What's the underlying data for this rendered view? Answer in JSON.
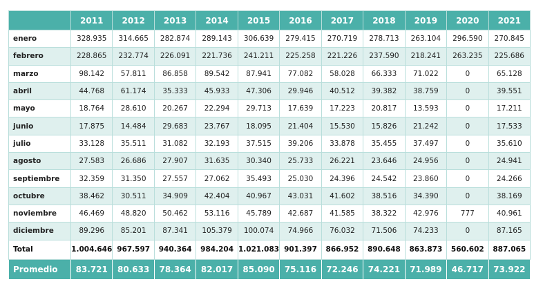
{
  "table": {
    "years": [
      "2011",
      "2012",
      "2013",
      "2014",
      "2015",
      "2016",
      "2017",
      "2018",
      "2019",
      "2020",
      "2021"
    ],
    "rows": [
      {
        "month": "enero",
        "values": [
          "328.935",
          "314.665",
          "282.874",
          "289.143",
          "306.639",
          "279.415",
          "270.719",
          "278.713",
          "263.104",
          "296.590",
          "270.845"
        ]
      },
      {
        "month": "febrero",
        "values": [
          "228.865",
          "232.774",
          "226.091",
          "221.736",
          "241.211",
          "225.258",
          "221.226",
          "237.590",
          "218.241",
          "263.235",
          "225.686"
        ]
      },
      {
        "month": "marzo",
        "values": [
          "98.142",
          "57.811",
          "86.858",
          "89.542",
          "87.941",
          "77.082",
          "58.028",
          "66.333",
          "71.022",
          "0",
          "65.128"
        ]
      },
      {
        "month": "abril",
        "values": [
          "44.768",
          "61.174",
          "35.333",
          "45.933",
          "47.306",
          "29.946",
          "40.512",
          "39.382",
          "38.759",
          "0",
          "39.551"
        ]
      },
      {
        "month": "mayo",
        "values": [
          "18.764",
          "28.610",
          "20.267",
          "22.294",
          "29.713",
          "17.639",
          "17.223",
          "20.817",
          "13.593",
          "0",
          "17.211"
        ]
      },
      {
        "month": "junio",
        "values": [
          "17.875",
          "14.484",
          "29.683",
          "23.767",
          "18.095",
          "21.404",
          "15.530",
          "15.826",
          "21.242",
          "0",
          "17.533"
        ]
      },
      {
        "month": "julio",
        "values": [
          "33.128",
          "35.511",
          "31.082",
          "32.193",
          "37.515",
          "39.206",
          "33.878",
          "35.455",
          "37.497",
          "0",
          "35.610"
        ]
      },
      {
        "month": "agosto",
        "values": [
          "27.583",
          "26.686",
          "27.907",
          "31.635",
          "30.340",
          "25.733",
          "26.221",
          "23.646",
          "24.956",
          "0",
          "24.941"
        ]
      },
      {
        "month": "septiembre",
        "values": [
          "32.359",
          "31.350",
          "27.557",
          "27.062",
          "35.493",
          "25.030",
          "24.396",
          "24.542",
          "23.860",
          "0",
          "24.266"
        ]
      },
      {
        "month": "octubre",
        "values": [
          "38.462",
          "30.511",
          "34.909",
          "42.404",
          "40.967",
          "43.031",
          "41.602",
          "38.516",
          "34.390",
          "0",
          "38.169"
        ]
      },
      {
        "month": "noviembre",
        "values": [
          "46.469",
          "48.820",
          "50.462",
          "53.116",
          "45.789",
          "42.687",
          "41.585",
          "38.322",
          "42.976",
          "777",
          "40.961"
        ]
      },
      {
        "month": "diciembre",
        "values": [
          "89.296",
          "85.201",
          "87.341",
          "105.379",
          "100.074",
          "74.966",
          "76.032",
          "71.506",
          "74.233",
          "0",
          "87.165"
        ]
      }
    ],
    "total": {
      "label": "Total",
      "values": [
        "1.004.646",
        "967.597",
        "940.364",
        "984.204",
        "1.021.083",
        "901.397",
        "866.952",
        "890.648",
        "863.873",
        "560.602",
        "887.065"
      ]
    },
    "average": {
      "label": "Promedio",
      "values": [
        "83.721",
        "80.633",
        "78.364",
        "82.017",
        "85.090",
        "75.116",
        "72.246",
        "74.221",
        "71.989",
        "46.717",
        "73.922"
      ]
    }
  }
}
